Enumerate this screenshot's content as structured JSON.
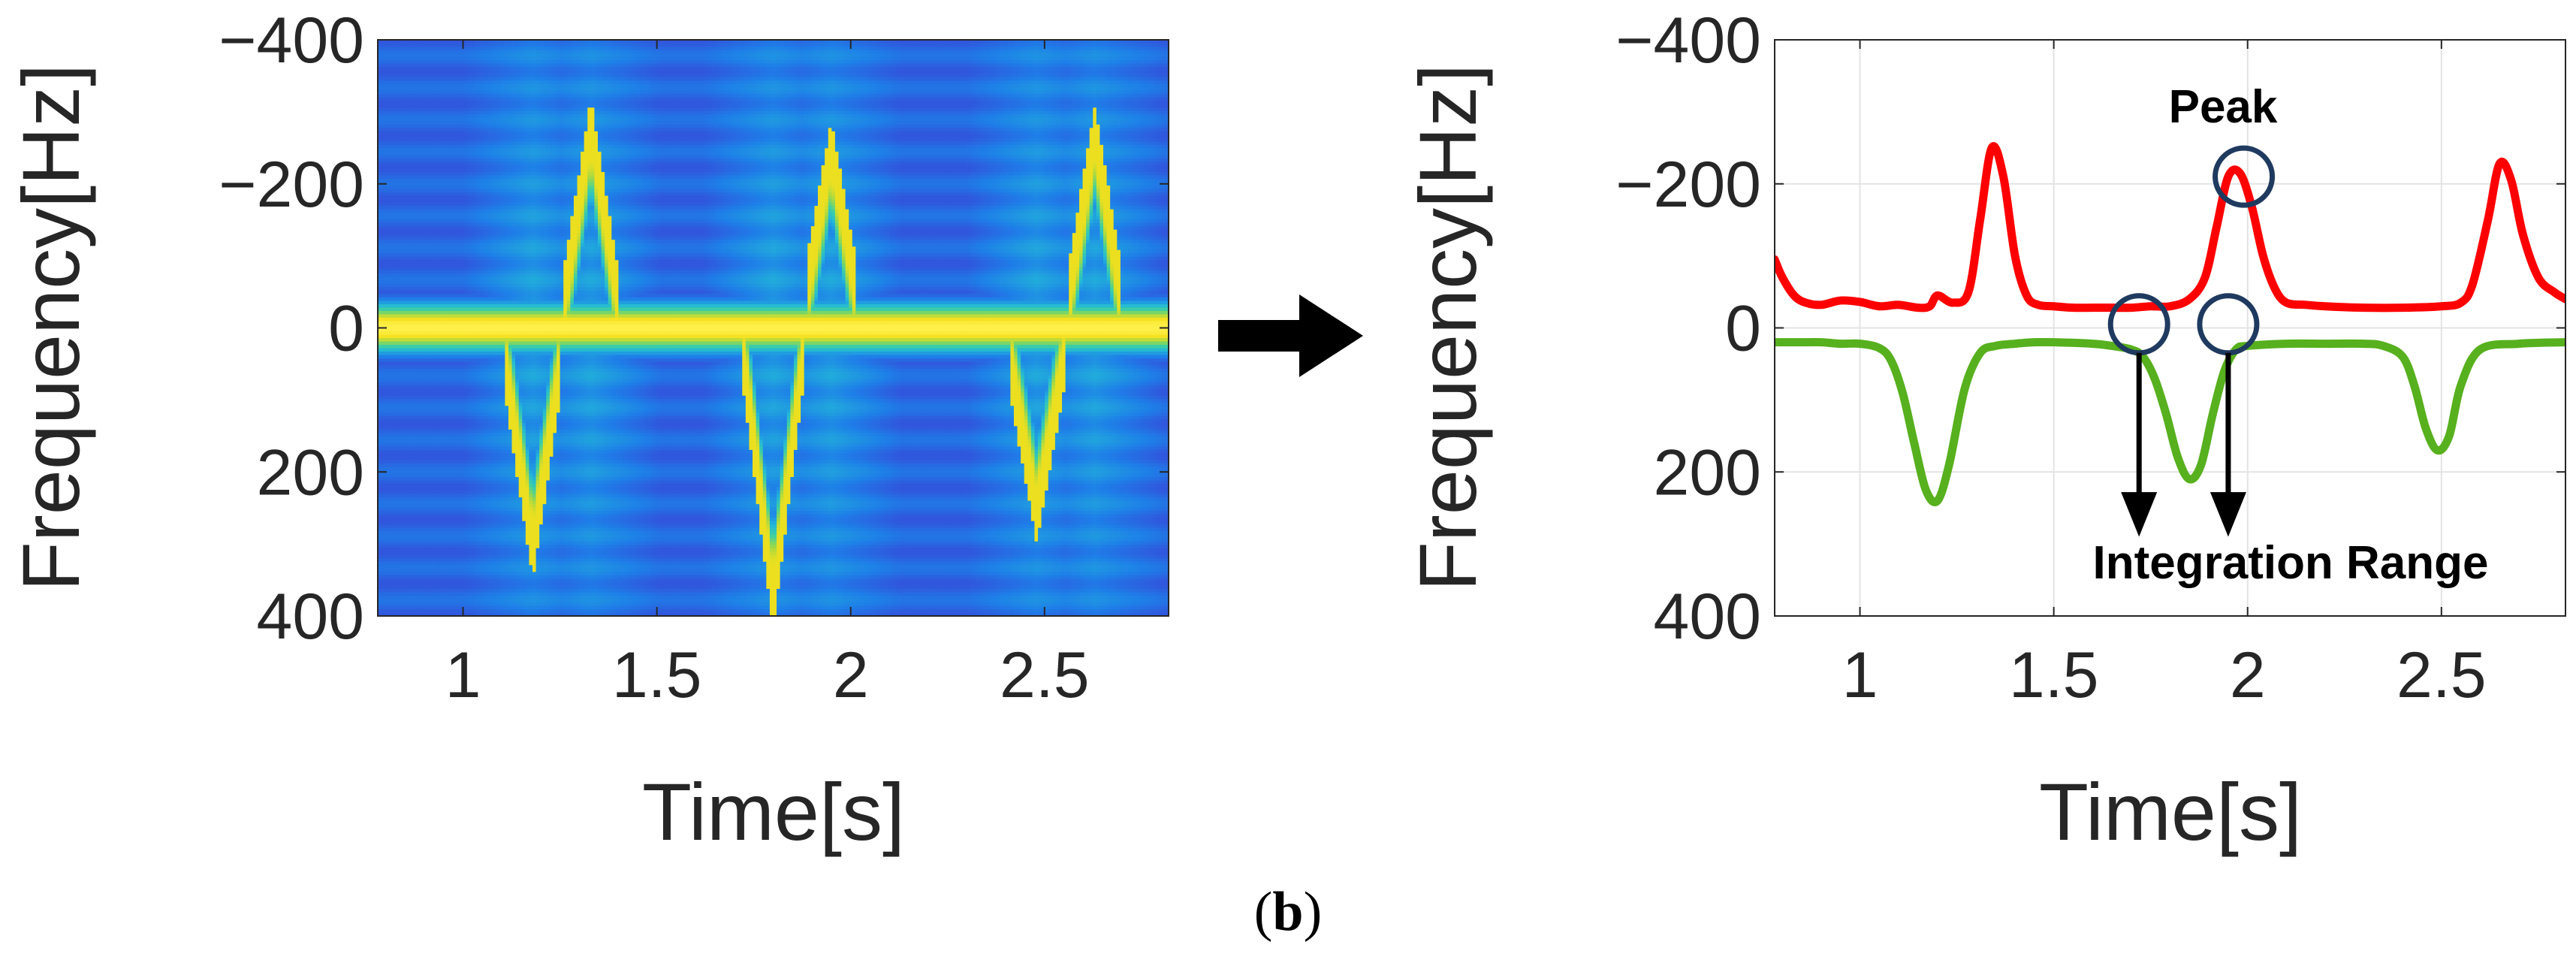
{
  "chart_data": [
    {
      "type": "heatmap",
      "xlabel": "Time[s]",
      "ylabel": "Frequency[Hz]",
      "xlim": [
        0.78,
        2.82
      ],
      "ylim": [
        -400,
        400
      ],
      "y_inverted": true,
      "xticks": [
        1,
        1.5,
        2,
        2.5
      ],
      "xtick_labels": [
        "1",
        "1.5",
        "2",
        "2.5"
      ],
      "yticks": [
        -400,
        -200,
        0,
        200,
        400
      ],
      "ytick_labels": [
        "−400",
        "−200",
        "0",
        "200",
        "400"
      ],
      "grid": false,
      "colormap": [
        "#3b3fd6",
        "#1e7fe8",
        "#22b8d8",
        "#3fd0a0",
        "#9bd84a",
        "#f2e01c",
        "#fff04a"
      ],
      "background_level_hz": 20,
      "events": [
        {
          "neg_peak_t": 1.18,
          "neg_peak_hz": 320,
          "pos_peak_t": 1.33,
          "pos_peak_hz": -290
        },
        {
          "neg_peak_t": 1.8,
          "neg_peak_hz": 390,
          "pos_peak_t": 1.95,
          "pos_peak_hz": -260
        },
        {
          "neg_peak_t": 2.48,
          "neg_peak_hz": 270,
          "pos_peak_t": 2.63,
          "pos_peak_hz": -280
        }
      ]
    },
    {
      "type": "line",
      "xlabel": "Time[s]",
      "ylabel": "Frequency[Hz]",
      "xlim": [
        0.78,
        2.82
      ],
      "ylim": [
        -400,
        400
      ],
      "y_inverted": true,
      "xticks": [
        1,
        1.5,
        2,
        2.5
      ],
      "xtick_labels": [
        "1",
        "1.5",
        "2",
        "2.5"
      ],
      "yticks": [
        -400,
        -200,
        0,
        200,
        400
      ],
      "ytick_labels": [
        "−400",
        "−200",
        "0",
        "200",
        "400"
      ],
      "grid": true,
      "series": [
        {
          "color": "#ff0000",
          "x": [
            0.78,
            0.8,
            0.83,
            0.86,
            0.9,
            0.95,
            1.0,
            1.05,
            1.1,
            1.15,
            1.18,
            1.2,
            1.24,
            1.28,
            1.31,
            1.34,
            1.37,
            1.4,
            1.43,
            1.46,
            1.5,
            1.55,
            1.6,
            1.65,
            1.7,
            1.75,
            1.8,
            1.85,
            1.89,
            1.92,
            1.95,
            1.98,
            2.01,
            2.04,
            2.07,
            2.1,
            2.15,
            2.2,
            2.3,
            2.4,
            2.5,
            2.55,
            2.58,
            2.62,
            2.65,
            2.68,
            2.71,
            2.75,
            2.79,
            2.82
          ],
          "y": [
            -95,
            -70,
            -45,
            -35,
            -32,
            -38,
            -36,
            -30,
            -32,
            -28,
            -30,
            -45,
            -35,
            -50,
            -150,
            -250,
            -210,
            -100,
            -45,
            -32,
            -30,
            -28,
            -28,
            -28,
            -28,
            -30,
            -30,
            -40,
            -70,
            -140,
            -210,
            -215,
            -170,
            -100,
            -55,
            -35,
            -32,
            -30,
            -28,
            -28,
            -30,
            -35,
            -60,
            -150,
            -228,
            -205,
            -130,
            -70,
            -50,
            -40
          ]
        },
        {
          "color": "#57b01e",
          "x": [
            0.78,
            0.85,
            0.9,
            0.95,
            1.0,
            1.05,
            1.08,
            1.11,
            1.14,
            1.17,
            1.2,
            1.23,
            1.27,
            1.31,
            1.35,
            1.4,
            1.45,
            1.5,
            1.6,
            1.65,
            1.7,
            1.73,
            1.76,
            1.79,
            1.82,
            1.85,
            1.88,
            1.91,
            1.94,
            1.97,
            2.0,
            2.1,
            2.2,
            2.3,
            2.35,
            2.4,
            2.43,
            2.46,
            2.49,
            2.52,
            2.55,
            2.6,
            2.7,
            2.82
          ],
          "y": [
            20,
            20,
            20,
            22,
            22,
            28,
            45,
            90,
            160,
            225,
            240,
            190,
            85,
            35,
            25,
            22,
            20,
            20,
            22,
            25,
            30,
            40,
            70,
            120,
            180,
            210,
            190,
            120,
            60,
            30,
            25,
            22,
            22,
            22,
            25,
            40,
            80,
            140,
            170,
            150,
            80,
            30,
            22,
            20
          ]
        }
      ],
      "annotations": [
        {
          "text": "Peak",
          "x": 1.99,
          "y": -210
        },
        {
          "text": "Integration Range",
          "arrows_at_x": [
            1.72,
            1.95
          ]
        }
      ]
    }
  ],
  "caption": "(b)"
}
